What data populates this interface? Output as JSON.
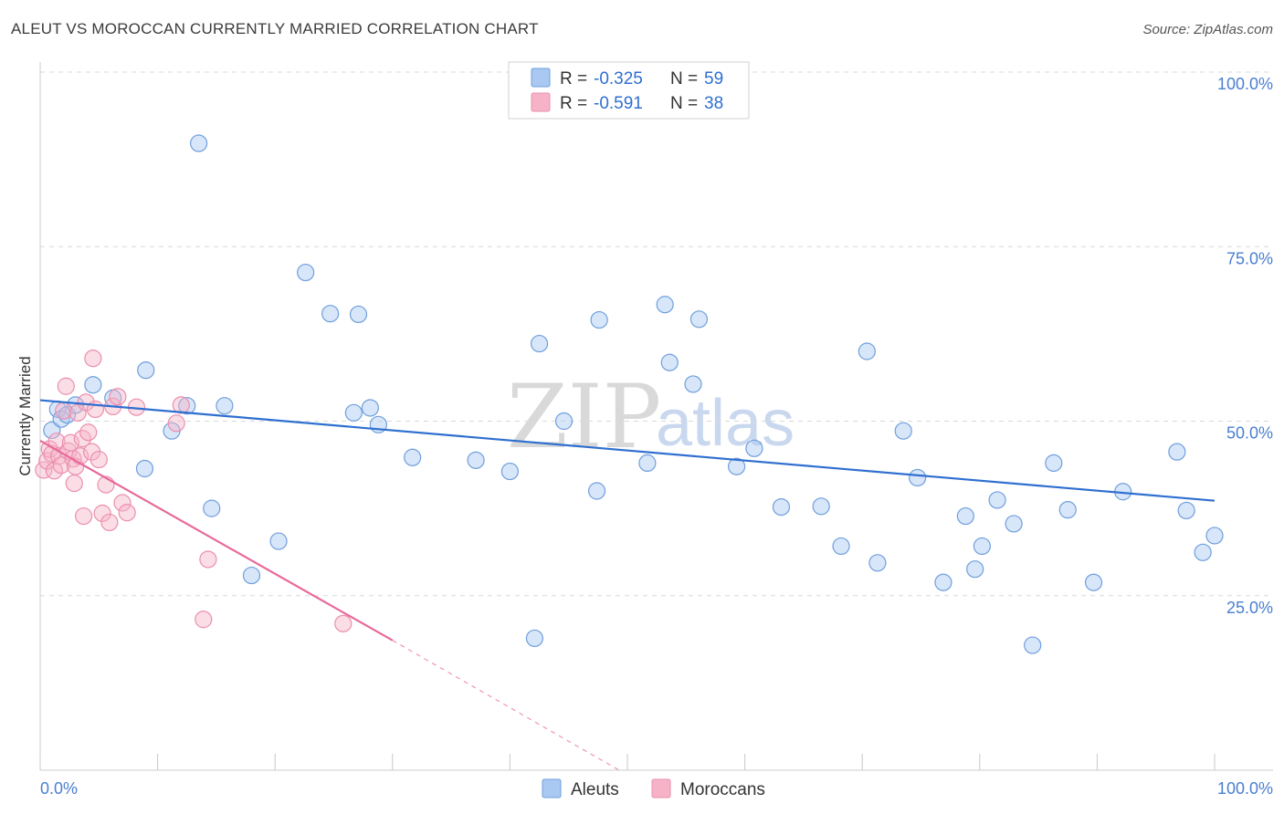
{
  "title": "ALEUT VS MOROCCAN CURRENTLY MARRIED CORRELATION CHART",
  "source": "Source: ZipAtlas.com",
  "watermark": {
    "zip": "ZIP",
    "atlas": "atlas"
  },
  "colors": {
    "aleuts_fill": "#a9c8f2",
    "aleuts_stroke": "#6f9fdc",
    "aleuts_line": "#2f6fd0",
    "moroccans_fill": "#f6b3c8",
    "moroccans_stroke": "#ea8fae",
    "moroccans_line": "#e8699a",
    "grid": "#d9d9d9",
    "tick_text": "#4a7fd0"
  },
  "legend": {
    "rows": [
      {
        "r_label": "R = ",
        "r_value": "-0.325",
        "n_label": "N = ",
        "n_value": "59"
      },
      {
        "r_label": "R = ",
        "r_value": "-0.591",
        "n_label": "N = ",
        "n_value": "38"
      }
    ]
  },
  "bottom_legend": {
    "aleuts": "Aleuts",
    "moroccans": "Moroccans"
  },
  "chart_data": {
    "type": "scatter",
    "title": "ALEUT VS MOROCCAN CURRENTLY MARRIED CORRELATION CHART",
    "xlabel": "",
    "ylabel": "Currently Married",
    "xlim": [
      0,
      100
    ],
    "ylim": [
      0,
      100
    ],
    "x_tick_labels": {
      "left": "0.0%",
      "right": "100.0%"
    },
    "y_ticks": [
      {
        "value": 25,
        "label": "25.0%"
      },
      {
        "value": 50,
        "label": "50.0%"
      },
      {
        "value": 75,
        "label": "75.0%"
      },
      {
        "value": 100,
        "label": "100.0%"
      }
    ],
    "series": [
      {
        "name": "Aleuts",
        "r": -0.325,
        "n": 59,
        "trend": {
          "x0": 0,
          "y0": 53.0,
          "x1": 100,
          "y1": 38.6
        },
        "points": [
          [
            1.0,
            48.7
          ],
          [
            1.5,
            51.7
          ],
          [
            1.8,
            50.3
          ],
          [
            2.3,
            50.9
          ],
          [
            3.0,
            52.3
          ],
          [
            4.5,
            55.2
          ],
          [
            6.2,
            53.3
          ],
          [
            9.0,
            57.3
          ],
          [
            11.2,
            48.6
          ],
          [
            12.5,
            52.2
          ],
          [
            14.6,
            37.5
          ],
          [
            13.5,
            89.8
          ],
          [
            15.7,
            52.2
          ],
          [
            18.0,
            27.9
          ],
          [
            20.3,
            32.8
          ],
          [
            22.6,
            71.3
          ],
          [
            24.7,
            65.4
          ],
          [
            26.7,
            51.2
          ],
          [
            27.1,
            65.3
          ],
          [
            28.1,
            51.9
          ],
          [
            28.8,
            49.5
          ],
          [
            31.7,
            44.8
          ],
          [
            37.1,
            44.4
          ],
          [
            40.0,
            42.8
          ],
          [
            42.5,
            61.1
          ],
          [
            44.6,
            50.0
          ],
          [
            42.1,
            18.9
          ],
          [
            47.4,
            40.0
          ],
          [
            47.6,
            64.5
          ],
          [
            51.7,
            44.0
          ],
          [
            53.2,
            66.7
          ],
          [
            55.6,
            55.3
          ],
          [
            56.1,
            64.6
          ],
          [
            53.6,
            58.4
          ],
          [
            59.3,
            43.5
          ],
          [
            60.8,
            46.1
          ],
          [
            63.1,
            37.7
          ],
          [
            66.5,
            37.8
          ],
          [
            68.2,
            32.1
          ],
          [
            70.4,
            60.0
          ],
          [
            71.3,
            29.7
          ],
          [
            73.5,
            48.6
          ],
          [
            74.7,
            41.9
          ],
          [
            76.9,
            26.9
          ],
          [
            78.8,
            36.4
          ],
          [
            79.6,
            28.8
          ],
          [
            80.2,
            32.1
          ],
          [
            81.5,
            38.7
          ],
          [
            82.9,
            35.3
          ],
          [
            84.5,
            17.9
          ],
          [
            86.3,
            44.0
          ],
          [
            87.5,
            37.3
          ],
          [
            89.7,
            26.9
          ],
          [
            92.2,
            39.9
          ],
          [
            96.8,
            45.6
          ],
          [
            97.6,
            37.2
          ],
          [
            99.0,
            31.2
          ],
          [
            100.0,
            33.6
          ],
          [
            8.9,
            43.2
          ]
        ]
      },
      {
        "name": "Moroccans",
        "r": -0.591,
        "n": 38,
        "trend": {
          "x0": 0,
          "y0": 47.2,
          "x1": 30,
          "y1": 18.6,
          "dash_x1": 49.3,
          "dash_y1": 0
        },
        "points": [
          [
            0.3,
            43.0
          ],
          [
            0.6,
            44.3
          ],
          [
            0.8,
            46.0
          ],
          [
            1.0,
            45.3
          ],
          [
            1.2,
            42.9
          ],
          [
            1.4,
            47.1
          ],
          [
            1.6,
            45.0
          ],
          [
            1.8,
            43.7
          ],
          [
            2.0,
            51.5
          ],
          [
            2.2,
            55.0
          ],
          [
            2.4,
            45.7
          ],
          [
            2.6,
            46.9
          ],
          [
            2.8,
            44.6
          ],
          [
            3.0,
            43.5
          ],
          [
            3.2,
            51.2
          ],
          [
            3.4,
            45.0
          ],
          [
            3.6,
            47.5
          ],
          [
            3.9,
            52.7
          ],
          [
            4.1,
            48.4
          ],
          [
            4.4,
            45.6
          ],
          [
            4.7,
            51.7
          ],
          [
            5.0,
            44.5
          ],
          [
            5.3,
            36.8
          ],
          [
            5.6,
            40.9
          ],
          [
            5.9,
            35.5
          ],
          [
            6.2,
            52.1
          ],
          [
            6.6,
            53.5
          ],
          [
            7.0,
            38.3
          ],
          [
            4.5,
            59.0
          ],
          [
            7.4,
            36.9
          ],
          [
            8.2,
            52.0
          ],
          [
            11.6,
            49.7
          ],
          [
            12.0,
            52.3
          ],
          [
            13.9,
            21.6
          ],
          [
            14.3,
            30.2
          ],
          [
            25.8,
            21.0
          ],
          [
            3.7,
            36.4
          ],
          [
            2.9,
            41.1
          ]
        ]
      }
    ]
  }
}
